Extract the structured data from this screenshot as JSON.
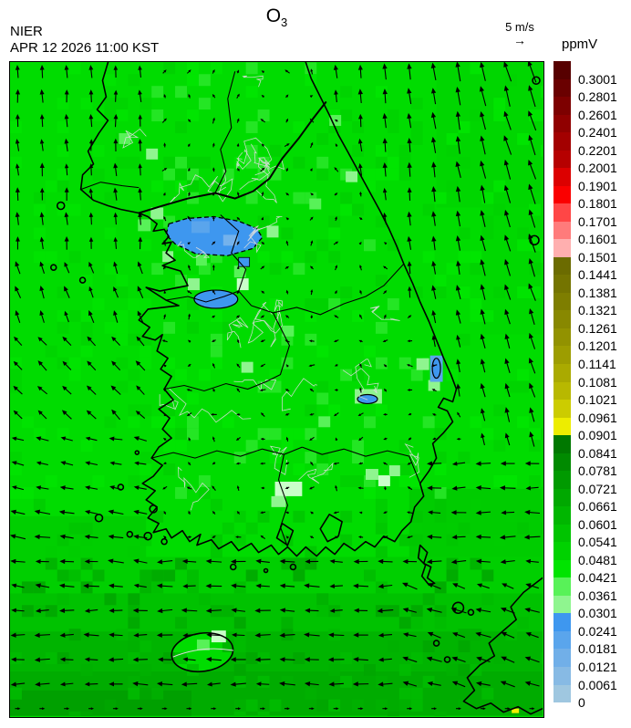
{
  "header": {
    "org": "NIER",
    "datetime": "APR 12 2026 11:00 KST",
    "title": "O",
    "title_sub": "3"
  },
  "wind_legend": {
    "label": "5 m/s",
    "arrow": "→"
  },
  "colorbar": {
    "unit": "ppmV",
    "levels": [
      {
        "label": "0.3001",
        "color": "#570000"
      },
      {
        "label": "0.2801",
        "color": "#6A0000"
      },
      {
        "label": "0.2601",
        "color": "#7D0000"
      },
      {
        "label": "0.2401",
        "color": "#900000"
      },
      {
        "label": "0.2201",
        "color": "#A30000"
      },
      {
        "label": "0.2001",
        "color": "#B60000"
      },
      {
        "label": "0.1901",
        "color": "#DC0000"
      },
      {
        "label": "0.1801",
        "color": "#FA0000"
      },
      {
        "label": "0.1701",
        "color": "#FF4646"
      },
      {
        "label": "0.1601",
        "color": "#FF7B7B"
      },
      {
        "label": "0.1501",
        "color": "#FFAFAF"
      },
      {
        "label": "0.1441",
        "color": "#6B6B00"
      },
      {
        "label": "0.1381",
        "color": "#747400"
      },
      {
        "label": "0.1321",
        "color": "#7E7E00"
      },
      {
        "label": "0.1261",
        "color": "#888800"
      },
      {
        "label": "0.1201",
        "color": "#929200"
      },
      {
        "label": "0.1141",
        "color": "#9D9D00"
      },
      {
        "label": "0.1081",
        "color": "#AAAA00"
      },
      {
        "label": "0.1021",
        "color": "#B8B800"
      },
      {
        "label": "0.0961",
        "color": "#CCCC00"
      },
      {
        "label": "0.0901",
        "color": "#EDED00"
      },
      {
        "label": "0.0841",
        "color": "#007800"
      },
      {
        "label": "0.0781",
        "color": "#008A00"
      },
      {
        "label": "0.0721",
        "color": "#009A00"
      },
      {
        "label": "0.0661",
        "color": "#00A800"
      },
      {
        "label": "0.0601",
        "color": "#00B600"
      },
      {
        "label": "0.0541",
        "color": "#00C400"
      },
      {
        "label": "0.0481",
        "color": "#00D200"
      },
      {
        "label": "0.0421",
        "color": "#00E400"
      },
      {
        "label": "0.0361",
        "color": "#58F258"
      },
      {
        "label": "0.0301",
        "color": "#8FF58F"
      },
      {
        "label": "0.0241",
        "color": "#3E97EF"
      },
      {
        "label": "0.0181",
        "color": "#5AA5EC"
      },
      {
        "label": "0.0121",
        "color": "#71AFE8"
      },
      {
        "label": "0.0061",
        "color": "#87BAE4"
      },
      {
        "label": "0",
        "color": "#9FC7E0"
      }
    ]
  },
  "map": {
    "colors": {
      "base": "#00DC00",
      "low_blob": "#3E97EF",
      "low_blob_light": "#5AA5EC",
      "pale_green": "#8FF58F",
      "pale_green_2": "#58F258",
      "pale_green_3": "#C9FFC9",
      "yellow_cell": "#F0F000",
      "coast": "#000000",
      "county_line": "#DCDCDC"
    }
  }
}
